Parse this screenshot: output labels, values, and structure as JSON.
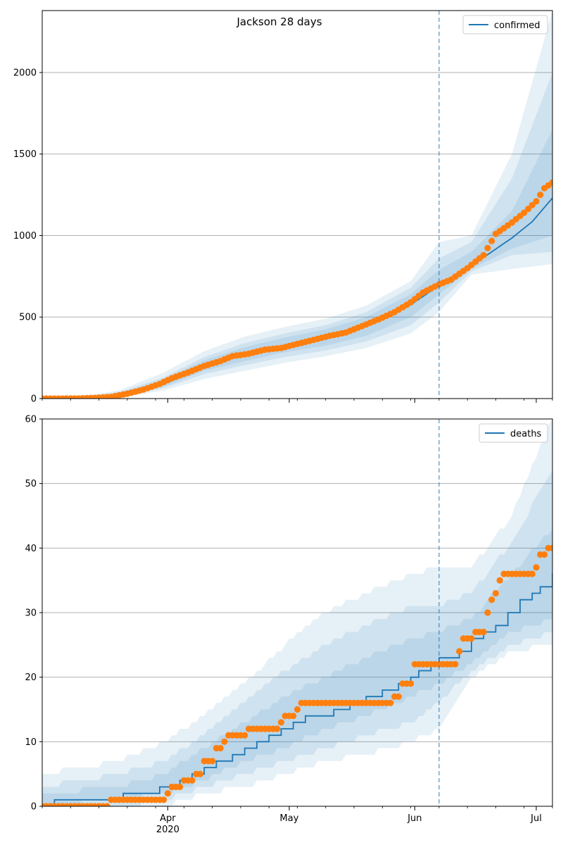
{
  "figure_title": "Jackson 28 days",
  "colors": {
    "model": "#1f77b4",
    "observed": "#ff7f0e",
    "band": "#1f77b4",
    "grid": "#b0b0b0",
    "forecast_line": "#1f77b4"
  },
  "x_axis": {
    "start": "2020-03-01",
    "end": "2020-07-05",
    "major_ticks": [
      {
        "date": "2020-04-01",
        "label": "Apr",
        "sublabel": "2020"
      },
      {
        "date": "2020-05-01",
        "label": "May",
        "sublabel": ""
      },
      {
        "date": "2020-06-01",
        "label": "Jun",
        "sublabel": ""
      },
      {
        "date": "2020-07-01",
        "label": "Jul",
        "sublabel": ""
      }
    ],
    "forecast_start": "2020-06-07"
  },
  "chart_data": [
    {
      "type": "line",
      "legend": [
        "confirmed"
      ],
      "legend_position": "top-right",
      "grid": "y",
      "ylim": [
        0,
        2380
      ],
      "yticks": [
        0,
        500,
        1000,
        1500,
        2000
      ],
      "series": [
        {
          "name": "confirmed",
          "kind": "model-median",
          "points": [
            [
              "2020-03-01",
              0
            ],
            [
              "2020-03-10",
              1
            ],
            [
              "2020-03-15",
              5
            ],
            [
              "2020-03-20",
              20
            ],
            [
              "2020-03-25",
              45
            ],
            [
              "2020-03-31",
              90
            ],
            [
              "2020-04-05",
              140
            ],
            [
              "2020-04-10",
              195
            ],
            [
              "2020-04-15",
              240
            ],
            [
              "2020-04-20",
              270
            ],
            [
              "2020-04-25",
              295
            ],
            [
              "2020-04-30",
              325
            ],
            [
              "2020-05-05",
              350
            ],
            [
              "2020-05-10",
              375
            ],
            [
              "2020-05-15",
              405
            ],
            [
              "2020-05-20",
              445
            ],
            [
              "2020-05-25",
              495
            ],
            [
              "2020-05-31",
              575
            ],
            [
              "2020-06-05",
              660
            ],
            [
              "2020-06-07",
              700
            ],
            [
              "2020-06-10",
              740
            ],
            [
              "2020-06-15",
              815
            ],
            [
              "2020-06-20",
              900
            ],
            [
              "2020-06-25",
              985
            ],
            [
              "2020-06-30",
              1085
            ],
            [
              "2020-07-05",
              1230
            ]
          ]
        },
        {
          "name": "",
          "kind": "observed",
          "points": [
            [
              "2020-03-01",
              0
            ],
            [
              "2020-03-05",
              0
            ],
            [
              "2020-03-10",
              1
            ],
            [
              "2020-03-14",
              4
            ],
            [
              "2020-03-18",
              10
            ],
            [
              "2020-03-22",
              30
            ],
            [
              "2020-03-26",
              55
            ],
            [
              "2020-03-30",
              90
            ],
            [
              "2020-04-02",
              125
            ],
            [
              "2020-04-06",
              160
            ],
            [
              "2020-04-10",
              200
            ],
            [
              "2020-04-14",
              230
            ],
            [
              "2020-04-17",
              260
            ],
            [
              "2020-04-21",
              275
            ],
            [
              "2020-04-25",
              300
            ],
            [
              "2020-04-29",
              310
            ],
            [
              "2020-05-03",
              335
            ],
            [
              "2020-05-07",
              360
            ],
            [
              "2020-05-11",
              385
            ],
            [
              "2020-05-15",
              405
            ],
            [
              "2020-05-19",
              445
            ],
            [
              "2020-05-23",
              485
            ],
            [
              "2020-05-27",
              530
            ],
            [
              "2020-05-31",
              590
            ],
            [
              "2020-06-03",
              650
            ],
            [
              "2020-06-07",
              700
            ],
            [
              "2020-06-10",
              730
            ],
            [
              "2020-06-14",
              800
            ],
            [
              "2020-06-18",
              880
            ],
            [
              "2020-06-21",
              1010
            ],
            [
              "2020-06-25",
              1080
            ],
            [
              "2020-06-28",
              1140
            ],
            [
              "2020-07-01",
              1210
            ],
            [
              "2020-07-03",
              1290
            ],
            [
              "2020-07-05",
              1325
            ]
          ]
        }
      ],
      "bands": [
        {
          "name": "",
          "points": [
            [
              "2020-03-01",
              0,
              0
            ],
            [
              "2020-03-10",
              0,
              10
            ],
            [
              "2020-03-20",
              5,
              50
            ],
            [
              "2020-03-31",
              50,
              160
            ],
            [
              "2020-04-10",
              120,
              290
            ],
            [
              "2020-04-20",
              170,
              380
            ],
            [
              "2020-04-30",
              220,
              440
            ],
            [
              "2020-05-10",
              260,
              490
            ],
            [
              "2020-05-20",
              310,
              570
            ],
            [
              "2020-05-31",
              400,
              720
            ],
            [
              "2020-06-07",
              530,
              960
            ],
            [
              "2020-06-15",
              760,
              1000
            ],
            [
              "2020-06-25",
              795,
              1500
            ],
            [
              "2020-07-05",
              825,
              2380
            ]
          ]
        },
        {
          "name": "",
          "points": [
            [
              "2020-03-01",
              0,
              0
            ],
            [
              "2020-03-10",
              0,
              6
            ],
            [
              "2020-03-20",
              10,
              40
            ],
            [
              "2020-03-31",
              65,
              130
            ],
            [
              "2020-04-10",
              150,
              255
            ],
            [
              "2020-04-20",
              205,
              340
            ],
            [
              "2020-04-30",
              255,
              400
            ],
            [
              "2020-05-10",
              295,
              450
            ],
            [
              "2020-05-20",
              350,
              530
            ],
            [
              "2020-05-31",
              450,
              680
            ],
            [
              "2020-06-07",
              590,
              860
            ],
            [
              "2020-06-15",
              780,
              960
            ],
            [
              "2020-06-25",
              880,
              1350
            ],
            [
              "2020-07-05",
              900,
              2000
            ]
          ]
        },
        {
          "name": "",
          "points": [
            [
              "2020-03-01",
              0,
              0
            ],
            [
              "2020-03-10",
              0,
              4
            ],
            [
              "2020-03-20",
              13,
              32
            ],
            [
              "2020-03-31",
              75,
              115
            ],
            [
              "2020-04-10",
              170,
              235
            ],
            [
              "2020-04-20",
              230,
              315
            ],
            [
              "2020-04-30",
              285,
              375
            ],
            [
              "2020-05-10",
              325,
              425
            ],
            [
              "2020-05-20",
              385,
              500
            ],
            [
              "2020-05-31",
              500,
              640
            ],
            [
              "2020-06-07",
              640,
              790
            ],
            [
              "2020-06-15",
              795,
              900
            ],
            [
              "2020-06-25",
              920,
              1150
            ],
            [
              "2020-07-05",
              1000,
              1650
            ]
          ]
        }
      ]
    },
    {
      "type": "line",
      "legend": [
        "deaths"
      ],
      "legend_position": "top-right",
      "grid": "y",
      "ylim": [
        0,
        60
      ],
      "yticks": [
        0,
        10,
        20,
        30,
        40,
        50,
        60
      ],
      "series": [
        {
          "name": "deaths",
          "kind": "model-median",
          "points": [
            [
              "2020-03-01",
              0
            ],
            [
              "2020-03-04",
              1
            ],
            [
              "2020-03-20",
              1
            ],
            [
              "2020-03-21",
              2
            ],
            [
              "2020-03-29",
              2
            ],
            [
              "2020-03-30",
              3
            ],
            [
              "2020-04-04",
              4
            ],
            [
              "2020-04-07",
              5
            ],
            [
              "2020-04-10",
              6
            ],
            [
              "2020-04-13",
              7
            ],
            [
              "2020-04-17",
              8
            ],
            [
              "2020-04-20",
              9
            ],
            [
              "2020-04-23",
              10
            ],
            [
              "2020-04-26",
              11
            ],
            [
              "2020-04-29",
              12
            ],
            [
              "2020-05-02",
              13
            ],
            [
              "2020-05-05",
              14
            ],
            [
              "2020-05-12",
              15
            ],
            [
              "2020-05-16",
              16
            ],
            [
              "2020-05-20",
              17
            ],
            [
              "2020-05-24",
              18
            ],
            [
              "2020-05-28",
              19
            ],
            [
              "2020-05-31",
              20
            ],
            [
              "2020-06-02",
              21
            ],
            [
              "2020-06-05",
              22
            ],
            [
              "2020-06-07",
              23
            ],
            [
              "2020-06-09",
              23
            ],
            [
              "2020-06-12",
              24
            ],
            [
              "2020-06-15",
              26
            ],
            [
              "2020-06-18",
              27
            ],
            [
              "2020-06-21",
              28
            ],
            [
              "2020-06-24",
              30
            ],
            [
              "2020-06-27",
              32
            ],
            [
              "2020-06-30",
              33
            ],
            [
              "2020-07-02",
              34
            ],
            [
              "2020-07-05",
              36
            ]
          ]
        },
        {
          "name": "",
          "kind": "observed",
          "points": [
            [
              "2020-03-01",
              0
            ],
            [
              "2020-03-17",
              0
            ],
            [
              "2020-03-18",
              1
            ],
            [
              "2020-03-31",
              1
            ],
            [
              "2020-04-01",
              2
            ],
            [
              "2020-04-02",
              3
            ],
            [
              "2020-04-05",
              4
            ],
            [
              "2020-04-08",
              5
            ],
            [
              "2020-04-10",
              7
            ],
            [
              "2020-04-13",
              9
            ],
            [
              "2020-04-15",
              10
            ],
            [
              "2020-04-16",
              11
            ],
            [
              "2020-04-21",
              12
            ],
            [
              "2020-04-29",
              13
            ],
            [
              "2020-04-30",
              14
            ],
            [
              "2020-05-03",
              15
            ],
            [
              "2020-05-04",
              16
            ],
            [
              "2020-05-26",
              16
            ],
            [
              "2020-05-27",
              17
            ],
            [
              "2020-05-29",
              19
            ],
            [
              "2020-06-01",
              22
            ],
            [
              "2020-06-11",
              22
            ],
            [
              "2020-06-12",
              24
            ],
            [
              "2020-06-13",
              26
            ],
            [
              "2020-06-16",
              27
            ],
            [
              "2020-06-19",
              30
            ],
            [
              "2020-06-20",
              32
            ],
            [
              "2020-06-21",
              33
            ],
            [
              "2020-06-22",
              35
            ],
            [
              "2020-06-23",
              36
            ],
            [
              "2020-06-30",
              36
            ],
            [
              "2020-07-01",
              37
            ],
            [
              "2020-07-02",
              39
            ],
            [
              "2020-07-04",
              40
            ],
            [
              "2020-07-05",
              40
            ]
          ]
        }
      ],
      "bands": [
        {
          "name": "",
          "points": [
            [
              "2020-03-01",
              0,
              5
            ],
            [
              "2020-03-20",
              0,
              7
            ],
            [
              "2020-03-31",
              0,
              10
            ],
            [
              "2020-04-10",
              2,
              14
            ],
            [
              "2020-04-20",
              3,
              19
            ],
            [
              "2020-04-30",
              5,
              25
            ],
            [
              "2020-05-10",
              7,
              30
            ],
            [
              "2020-05-20",
              8,
              33
            ],
            [
              "2020-05-31",
              10,
              36
            ],
            [
              "2020-06-07",
              12,
              37
            ],
            [
              "2020-06-15",
              20,
              37
            ],
            [
              "2020-06-25",
              24,
              45
            ],
            [
              "2020-07-05",
              25,
              60
            ]
          ]
        },
        {
          "name": "",
          "points": [
            [
              "2020-03-01",
              0,
              3
            ],
            [
              "2020-03-20",
              0,
              5
            ],
            [
              "2020-03-31",
              1,
              7
            ],
            [
              "2020-04-10",
              3,
              11
            ],
            [
              "2020-04-20",
              5,
              16
            ],
            [
              "2020-04-30",
              7,
              21
            ],
            [
              "2020-05-10",
              9,
              25
            ],
            [
              "2020-05-20",
              11,
              28
            ],
            [
              "2020-05-31",
              13,
              31
            ],
            [
              "2020-06-07",
              16,
              31
            ],
            [
              "2020-06-15",
              21,
              33
            ],
            [
              "2020-06-25",
              25,
              41
            ],
            [
              "2020-07-05",
              27,
              52
            ]
          ]
        },
        {
          "name": "",
          "points": [
            [
              "2020-03-01",
              0,
              2
            ],
            [
              "2020-03-20",
              1,
              3
            ],
            [
              "2020-03-31",
              2,
              5
            ],
            [
              "2020-04-10",
              4,
              9
            ],
            [
              "2020-04-20",
              7,
              13
            ],
            [
              "2020-04-30",
              9,
              17
            ],
            [
              "2020-05-10",
              12,
              20
            ],
            [
              "2020-05-20",
              14,
              23
            ],
            [
              "2020-05-31",
              17,
              26
            ],
            [
              "2020-06-07",
              19,
              27
            ],
            [
              "2020-06-15",
              22,
              29
            ],
            [
              "2020-06-25",
              27,
              36
            ],
            [
              "2020-07-05",
              29,
              43
            ]
          ]
        }
      ]
    }
  ]
}
